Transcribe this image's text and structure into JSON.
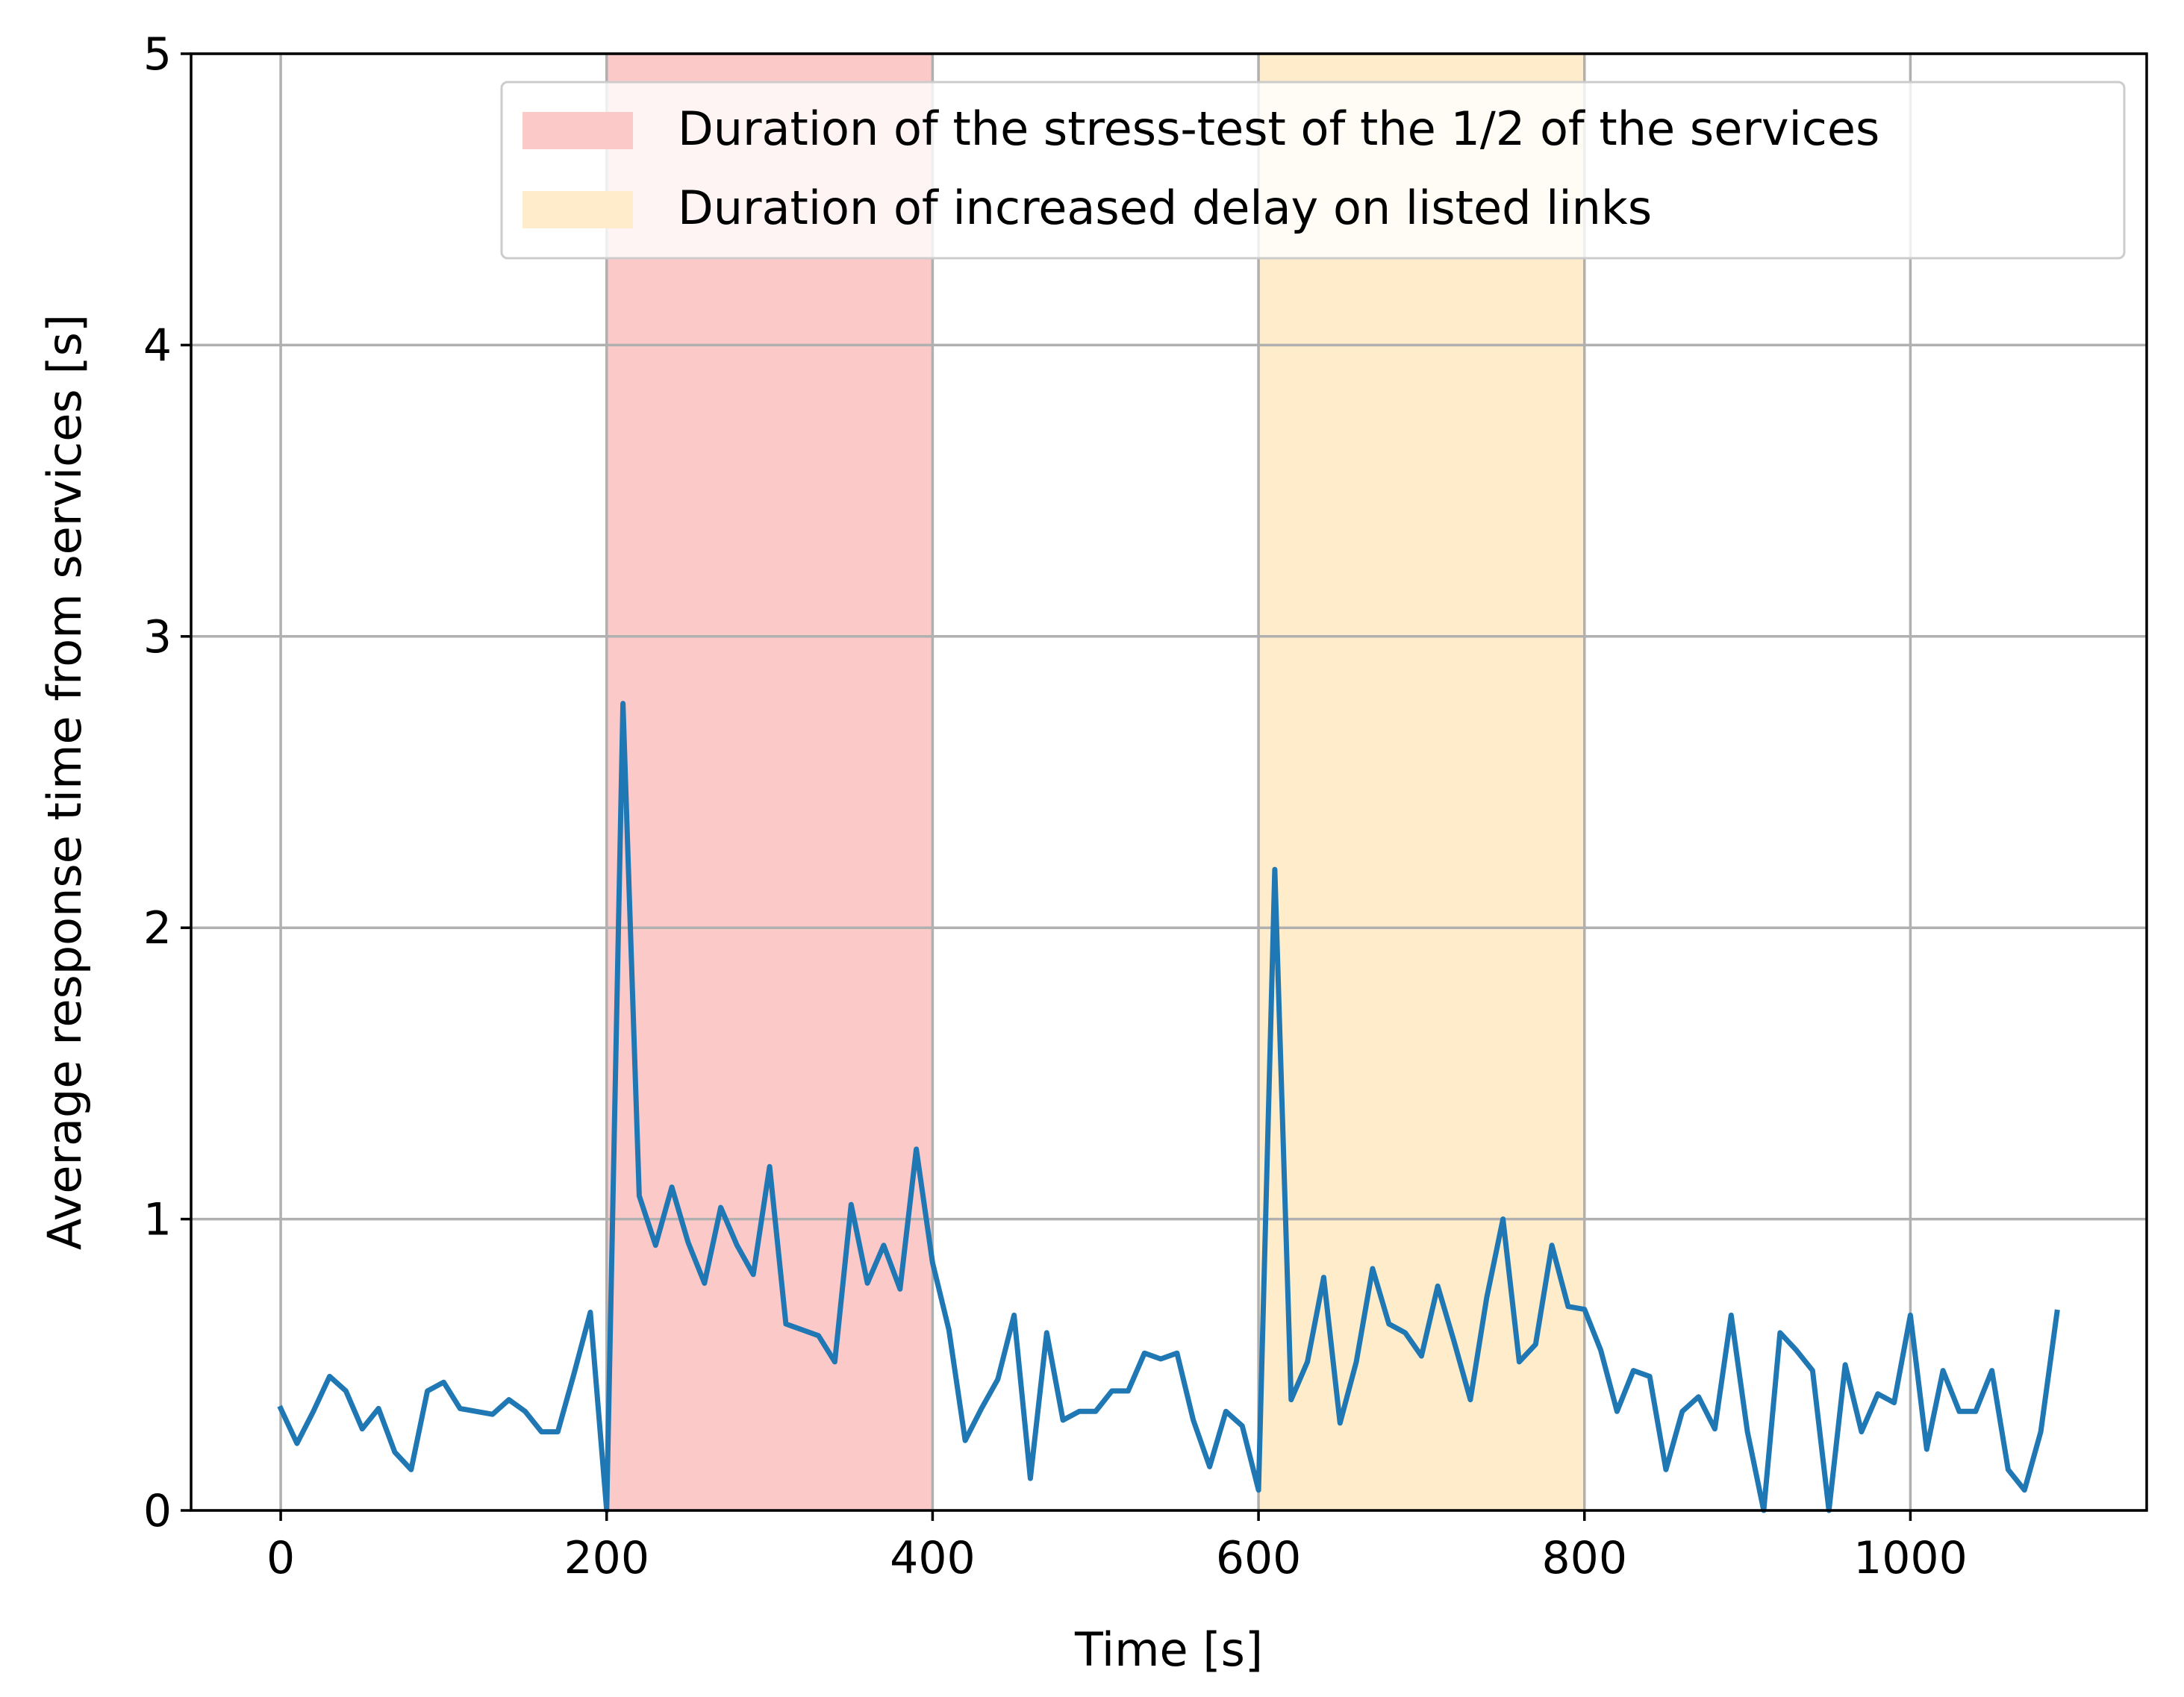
{
  "chart_data": {
    "type": "line",
    "title": "",
    "xlabel": "Time [s]",
    "ylabel": "Average response time from services [s]",
    "xlim": [
      -55,
      1145
    ],
    "ylim": [
      0,
      5
    ],
    "xticks": [
      0,
      200,
      400,
      600,
      800,
      1000
    ],
    "xtick_labels": [
      "0",
      "200",
      "400",
      "600",
      "800",
      "1000"
    ],
    "yticks": [
      0,
      1,
      2,
      3,
      4,
      5
    ],
    "ytick_labels": [
      "0",
      "1",
      "2",
      "3",
      "4",
      "5"
    ],
    "grid": true,
    "legend_position": "top-right",
    "spans": [
      {
        "name": "Duration of the stress-test of the 1/2 of the services",
        "x_start": 200,
        "x_end": 400,
        "color": "#fcc9c9"
      },
      {
        "name": "Duration of increased delay on listed links",
        "x_start": 600,
        "x_end": 800,
        "color": "#feecca"
      }
    ],
    "series": [
      {
        "name": "Average response time",
        "color": "#1f77b4",
        "x": [
          0,
          10,
          20,
          30,
          40,
          50,
          60,
          70,
          80,
          90,
          100,
          110,
          120,
          130,
          140,
          150,
          160,
          170,
          180,
          190,
          200,
          210,
          220,
          230,
          240,
          250,
          260,
          270,
          280,
          290,
          300,
          310,
          320,
          330,
          340,
          350,
          360,
          370,
          380,
          390,
          400,
          410,
          420,
          430,
          440,
          450,
          460,
          470,
          480,
          490,
          500,
          510,
          520,
          530,
          540,
          550,
          560,
          570,
          580,
          590,
          600,
          610,
          620,
          630,
          640,
          650,
          660,
          670,
          680,
          690,
          700,
          710,
          720,
          730,
          740,
          750,
          760,
          770,
          780,
          790,
          800,
          810,
          820,
          830,
          840,
          850,
          860,
          870,
          880,
          890,
          900,
          910,
          920,
          930,
          940,
          950,
          960,
          970,
          980,
          990,
          1000,
          1010,
          1020,
          1030,
          1040,
          1050,
          1060,
          1070,
          1080,
          1090
        ],
        "values": [
          0.35,
          0.23,
          0.34,
          0.46,
          0.41,
          0.28,
          0.35,
          0.2,
          0.14,
          0.41,
          0.44,
          0.35,
          0.34,
          0.33,
          0.38,
          0.34,
          0.27,
          0.27,
          0.47,
          0.68,
          0.0,
          2.77,
          1.08,
          0.91,
          1.11,
          0.92,
          0.78,
          1.04,
          0.91,
          0.81,
          1.18,
          0.64,
          0.62,
          0.6,
          0.51,
          1.05,
          0.78,
          0.91,
          0.76,
          1.24,
          0.85,
          0.62,
          0.24,
          0.35,
          0.45,
          0.67,
          0.11,
          0.61,
          0.31,
          0.34,
          0.34,
          0.41,
          0.41,
          0.54,
          0.52,
          0.54,
          0.31,
          0.15,
          0.34,
          0.29,
          0.07,
          2.2,
          0.38,
          0.51,
          0.8,
          0.3,
          0.51,
          0.83,
          0.64,
          0.61,
          0.53,
          0.77,
          0.58,
          0.38,
          0.73,
          1.0,
          0.51,
          0.57,
          0.91,
          0.7,
          0.69,
          0.55,
          0.34,
          0.48,
          0.46,
          0.14,
          0.34,
          0.39,
          0.28,
          0.67,
          0.27,
          0.0,
          0.61,
          0.55,
          0.48,
          0.0,
          0.5,
          0.27,
          0.4,
          0.37,
          0.67,
          0.21,
          0.48,
          0.34,
          0.34,
          0.48,
          0.14,
          0.07,
          0.27,
          0.68
        ]
      }
    ]
  }
}
